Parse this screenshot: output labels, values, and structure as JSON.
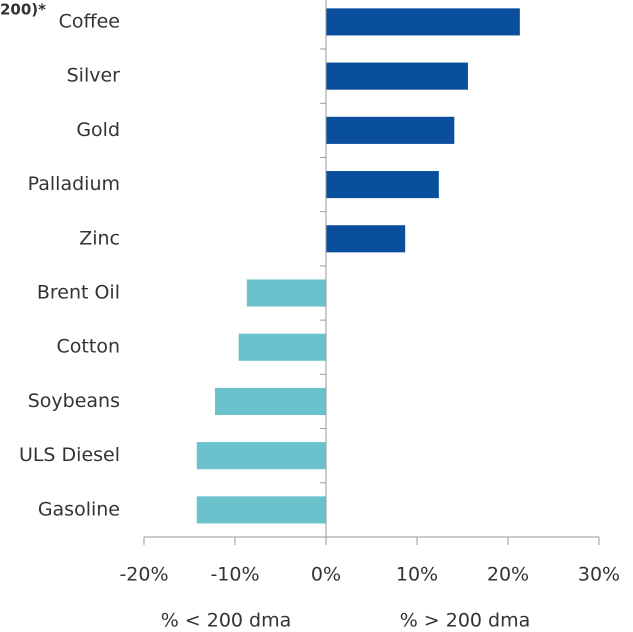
{
  "chart_data": {
    "type": "barh",
    "title": "200)*",
    "categories": [
      "Coffee",
      "Silver",
      "Gold",
      "Palladium",
      "Zinc",
      "Brent Oil",
      "Cotton",
      "Soybeans",
      "ULS Diesel",
      "Gasoline"
    ],
    "values": [
      21.3,
      15.6,
      14.1,
      12.4,
      8.7,
      -8.7,
      -9.6,
      -12.2,
      -14.2,
      -14.2
    ],
    "positive_color": "#0a4f9e",
    "negative_color": "#6ac3cc",
    "xlim": [
      -20,
      30
    ],
    "xticks": [
      {
        "value": -20,
        "label": "-20%"
      },
      {
        "value": -10,
        "label": "-10%"
      },
      {
        "value": 0,
        "label": "0%"
      },
      {
        "value": 10,
        "label": "10%"
      },
      {
        "value": 20,
        "label": "20%"
      },
      {
        "value": 30,
        "label": "30%"
      }
    ],
    "annotations": [
      "% < 200 dma",
      "% > 200 dma"
    ]
  }
}
